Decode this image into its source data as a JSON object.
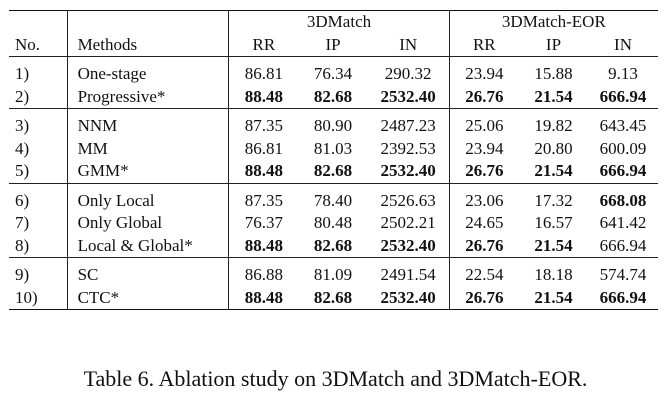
{
  "header": {
    "col_no": "No.",
    "col_methods": "Methods",
    "group1": "3DMatch",
    "group2": "3DMatch-EOR",
    "metrics": [
      "RR",
      "IP",
      "IN",
      "RR",
      "IP",
      "IN"
    ]
  },
  "groups": [
    {
      "rows": [
        {
          "no": "1)",
          "method": "One-stage",
          "vals": [
            "86.81",
            "76.34",
            "290.32",
            "23.94",
            "15.88",
            "9.13"
          ],
          "bold": [
            false,
            false,
            false,
            false,
            false,
            false
          ]
        },
        {
          "no": "2)",
          "method": "Progressive*",
          "vals": [
            "88.48",
            "82.68",
            "2532.40",
            "26.76",
            "21.54",
            "666.94"
          ],
          "bold": [
            true,
            true,
            true,
            true,
            true,
            true
          ]
        }
      ]
    },
    {
      "rows": [
        {
          "no": "3)",
          "method": "NNM",
          "vals": [
            "87.35",
            "80.90",
            "2487.23",
            "25.06",
            "19.82",
            "643.45"
          ],
          "bold": [
            false,
            false,
            false,
            false,
            false,
            false
          ]
        },
        {
          "no": "4)",
          "method": "MM",
          "vals": [
            "86.81",
            "81.03",
            "2392.53",
            "23.94",
            "20.80",
            "600.09"
          ],
          "bold": [
            false,
            false,
            false,
            false,
            false,
            false
          ]
        },
        {
          "no": "5)",
          "method": "GMM*",
          "vals": [
            "88.48",
            "82.68",
            "2532.40",
            "26.76",
            "21.54",
            "666.94"
          ],
          "bold": [
            true,
            true,
            true,
            true,
            true,
            true
          ]
        }
      ]
    },
    {
      "rows": [
        {
          "no": "6)",
          "method": "Only Local",
          "vals": [
            "87.35",
            "78.40",
            "2526.63",
            "23.06",
            "17.32",
            "668.08"
          ],
          "bold": [
            false,
            false,
            false,
            false,
            false,
            true
          ]
        },
        {
          "no": "7)",
          "method": "Only Global",
          "vals": [
            "76.37",
            "80.48",
            "2502.21",
            "24.65",
            "16.57",
            "641.42"
          ],
          "bold": [
            false,
            false,
            false,
            false,
            false,
            false
          ]
        },
        {
          "no": "8)",
          "method": "Local & Global*",
          "vals": [
            "88.48",
            "82.68",
            "2532.40",
            "26.76",
            "21.54",
            "666.94"
          ],
          "bold": [
            true,
            true,
            true,
            true,
            true,
            false
          ]
        }
      ]
    },
    {
      "rows": [
        {
          "no": "9)",
          "method": "SC",
          "vals": [
            "86.88",
            "81.09",
            "2491.54",
            "22.54",
            "18.18",
            "574.74"
          ],
          "bold": [
            false,
            false,
            false,
            false,
            false,
            false
          ]
        },
        {
          "no": "10)",
          "method": "CTC*",
          "vals": [
            "88.48",
            "82.68",
            "2532.40",
            "26.76",
            "21.54",
            "666.94"
          ],
          "bold": [
            true,
            true,
            true,
            true,
            true,
            true
          ]
        }
      ]
    }
  ],
  "caption": "Table 6. Ablation study on 3DMatch and 3DMatch-EOR."
}
